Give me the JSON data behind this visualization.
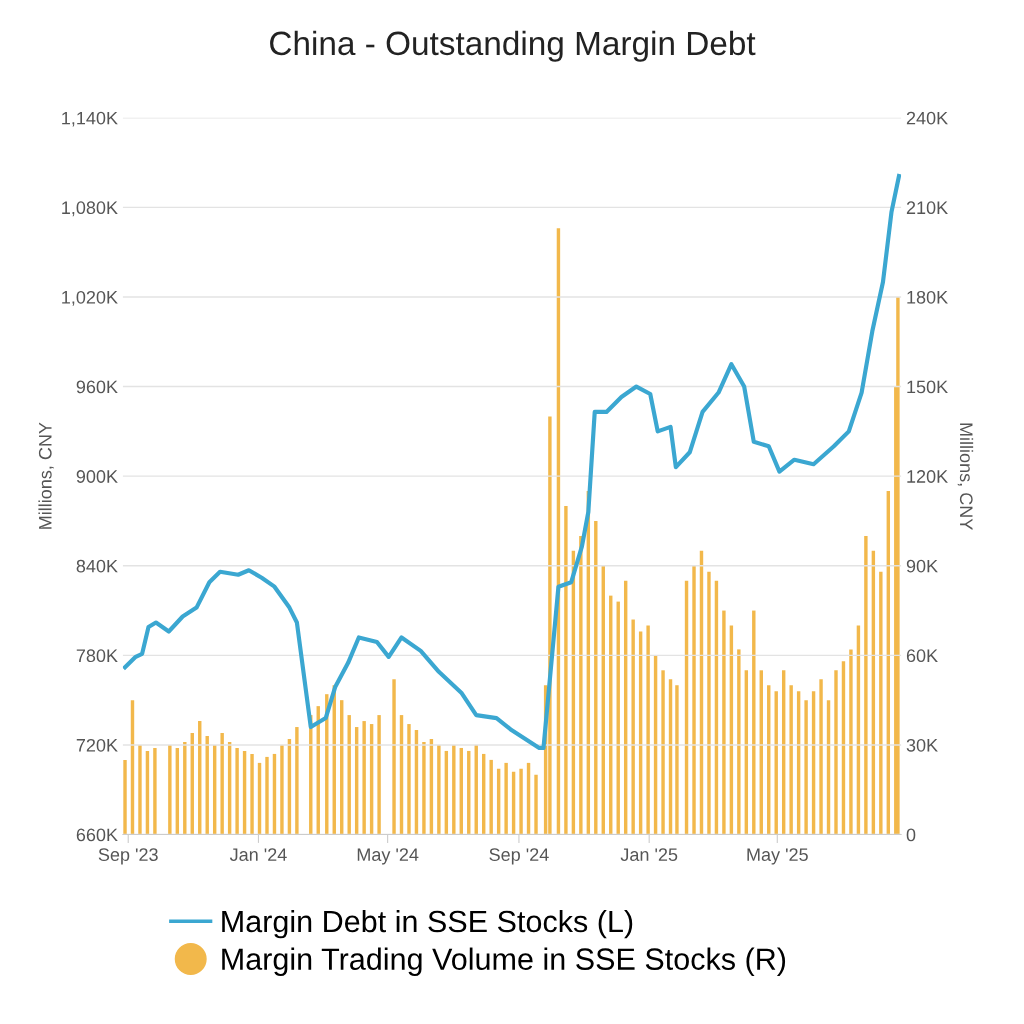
{
  "chart_data": {
    "type": "line",
    "title": "China - Outstanding Margin Debt",
    "ylabel": "Millions, CNY",
    "y2label": "Millions, CNY",
    "xlim": [
      "2023-08-27",
      "2025-08-25"
    ],
    "xticks": [
      {
        "value": "2023-09-01",
        "label": "Sep '23"
      },
      {
        "value": "2024-01-01",
        "label": "Jan '24"
      },
      {
        "value": "2024-05-01",
        "label": "May '24"
      },
      {
        "value": "2024-09-01",
        "label": "Sep '24"
      },
      {
        "value": "2025-01-01",
        "label": "Jan '25"
      },
      {
        "value": "2025-05-01",
        "label": "May '25"
      }
    ],
    "ylim": [
      660000,
      1140000
    ],
    "yticks": [
      {
        "value": 660000,
        "label": "660K"
      },
      {
        "value": 720000,
        "label": "720K"
      },
      {
        "value": 780000,
        "label": "780K"
      },
      {
        "value": 840000,
        "label": "840K"
      },
      {
        "value": 900000,
        "label": "900K"
      },
      {
        "value": 960000,
        "label": "960K"
      },
      {
        "value": 1020000,
        "label": "1,020K"
      },
      {
        "value": 1080000,
        "label": "1,080K"
      },
      {
        "value": 1140000,
        "label": "1,140K"
      }
    ],
    "y2lim": [
      0,
      240000
    ],
    "y2ticks": [
      {
        "value": 0,
        "label": "0"
      },
      {
        "value": 30000,
        "label": "30K"
      },
      {
        "value": 60000,
        "label": "60K"
      },
      {
        "value": 90000,
        "label": "90K"
      },
      {
        "value": 120000,
        "label": "120K"
      },
      {
        "value": 150000,
        "label": "150K"
      },
      {
        "value": 180000,
        "label": "180K"
      },
      {
        "value": 210000,
        "label": "210K"
      },
      {
        "value": 240000,
        "label": "240K"
      }
    ],
    "grid": "y",
    "legend": "bottom",
    "series": [
      {
        "name": "Margin Trading Volume in SSE Stocks (R)",
        "type": "bar",
        "axis": "y2",
        "color": "#f2b84b",
        "x": [
          "2023-08-29",
          "2023-09-05",
          "2023-09-12",
          "2023-09-19",
          "2023-09-26",
          "2023-10-10",
          "2023-10-17",
          "2023-10-24",
          "2023-10-31",
          "2023-11-07",
          "2023-11-14",
          "2023-11-21",
          "2023-11-28",
          "2023-12-05",
          "2023-12-12",
          "2023-12-19",
          "2023-12-26",
          "2024-01-02",
          "2024-01-09",
          "2024-01-16",
          "2024-01-23",
          "2024-01-30",
          "2024-02-06",
          "2024-02-19",
          "2024-02-26",
          "2024-03-05",
          "2024-03-12",
          "2024-03-19",
          "2024-03-26",
          "2024-04-02",
          "2024-04-09",
          "2024-04-16",
          "2024-04-23",
          "2024-05-07",
          "2024-05-14",
          "2024-05-21",
          "2024-05-28",
          "2024-06-04",
          "2024-06-11",
          "2024-06-18",
          "2024-06-25",
          "2024-07-02",
          "2024-07-09",
          "2024-07-16",
          "2024-07-23",
          "2024-07-30",
          "2024-08-06",
          "2024-08-13",
          "2024-08-20",
          "2024-08-27",
          "2024-09-03",
          "2024-09-10",
          "2024-09-17",
          "2024-09-26",
          "2024-09-30",
          "2024-10-08",
          "2024-10-15",
          "2024-10-22",
          "2024-10-29",
          "2024-11-05",
          "2024-11-12",
          "2024-11-19",
          "2024-11-26",
          "2024-12-03",
          "2024-12-10",
          "2024-12-17",
          "2024-12-24",
          "2024-12-31",
          "2025-01-07",
          "2025-01-14",
          "2025-01-21",
          "2025-01-27",
          "2025-02-05",
          "2025-02-12",
          "2025-02-19",
          "2025-02-26",
          "2025-03-05",
          "2025-03-12",
          "2025-03-19",
          "2025-03-26",
          "2025-04-02",
          "2025-04-09",
          "2025-04-16",
          "2025-04-23",
          "2025-04-30",
          "2025-05-07",
          "2025-05-14",
          "2025-05-21",
          "2025-05-28",
          "2025-06-04",
          "2025-06-11",
          "2025-06-18",
          "2025-06-25",
          "2025-07-02",
          "2025-07-09",
          "2025-07-16",
          "2025-07-23",
          "2025-07-30",
          "2025-08-06",
          "2025-08-13",
          "2025-08-20",
          "2025-08-22"
        ],
        "values": [
          25000,
          45000,
          30000,
          28000,
          29000,
          30000,
          29000,
          31000,
          34000,
          38000,
          33000,
          30000,
          34000,
          31000,
          29000,
          28000,
          27000,
          24000,
          26000,
          27000,
          30000,
          32000,
          36000,
          40000,
          43000,
          47000,
          50000,
          45000,
          40000,
          36000,
          38000,
          37000,
          40000,
          52000,
          40000,
          37000,
          35000,
          31000,
          32000,
          30000,
          28000,
          30000,
          29000,
          28000,
          30000,
          27000,
          25000,
          22000,
          24000,
          21000,
          22000,
          24000,
          20000,
          50000,
          140000,
          203000,
          110000,
          95000,
          100000,
          115000,
          105000,
          90000,
          80000,
          78000,
          85000,
          72000,
          68000,
          70000,
          60000,
          55000,
          52000,
          50000,
          85000,
          90000,
          95000,
          88000,
          85000,
          75000,
          70000,
          62000,
          55000,
          75000,
          55000,
          50000,
          48000,
          55000,
          50000,
          48000,
          45000,
          48000,
          52000,
          45000,
          55000,
          58000,
          62000,
          70000,
          100000,
          95000,
          88000,
          115000,
          150000,
          180000
        ]
      },
      {
        "name": "Margin Debt in SSE Stocks (L)",
        "axis": "y",
        "color": "#3ba7d1",
        "x": [
          "2023-08-29",
          "2023-09-08",
          "2023-09-14",
          "2023-09-20",
          "2023-09-27",
          "2023-10-09",
          "2023-10-22",
          "2023-11-04",
          "2023-11-16",
          "2023-11-26",
          "2023-12-13",
          "2023-12-23",
          "2024-01-04",
          "2024-01-16",
          "2024-01-30",
          "2024-02-06",
          "2024-02-19",
          "2024-03-04",
          "2024-03-13",
          "2024-03-25",
          "2024-04-04",
          "2024-04-21",
          "2024-05-02",
          "2024-05-14",
          "2024-06-01",
          "2024-06-18",
          "2024-07-09",
          "2024-07-23",
          "2024-08-11",
          "2024-08-25",
          "2024-09-20",
          "2024-09-24",
          "2024-10-08",
          "2024-10-20",
          "2024-10-30",
          "2024-11-05",
          "2024-11-11",
          "2024-11-22",
          "2024-12-06",
          "2024-12-20",
          "2025-01-02",
          "2025-01-09",
          "2025-01-21",
          "2025-01-26",
          "2025-02-08",
          "2025-02-20",
          "2025-03-07",
          "2025-03-19",
          "2025-03-31",
          "2025-04-09",
          "2025-04-23",
          "2025-05-03",
          "2025-05-17",
          "2025-06-04",
          "2025-06-23",
          "2025-07-07",
          "2025-07-19",
          "2025-07-29",
          "2025-08-08",
          "2025-08-16",
          "2025-08-23"
        ],
        "values": [
          772000,
          779000,
          781000,
          799000,
          802000,
          796000,
          806000,
          812000,
          829000,
          836000,
          834000,
          837000,
          832000,
          826000,
          812000,
          802000,
          732000,
          738000,
          759000,
          775000,
          792000,
          789000,
          779000,
          792000,
          783000,
          769000,
          755000,
          740000,
          738000,
          730000,
          718000,
          718000,
          826000,
          829000,
          853000,
          876000,
          943000,
          943000,
          953000,
          960000,
          955000,
          930000,
          933000,
          906000,
          916000,
          943000,
          956000,
          975000,
          960000,
          923000,
          920000,
          903000,
          911000,
          908000,
          920000,
          930000,
          956000,
          997000,
          1030000,
          1077000,
          1101000
        ]
      }
    ]
  }
}
